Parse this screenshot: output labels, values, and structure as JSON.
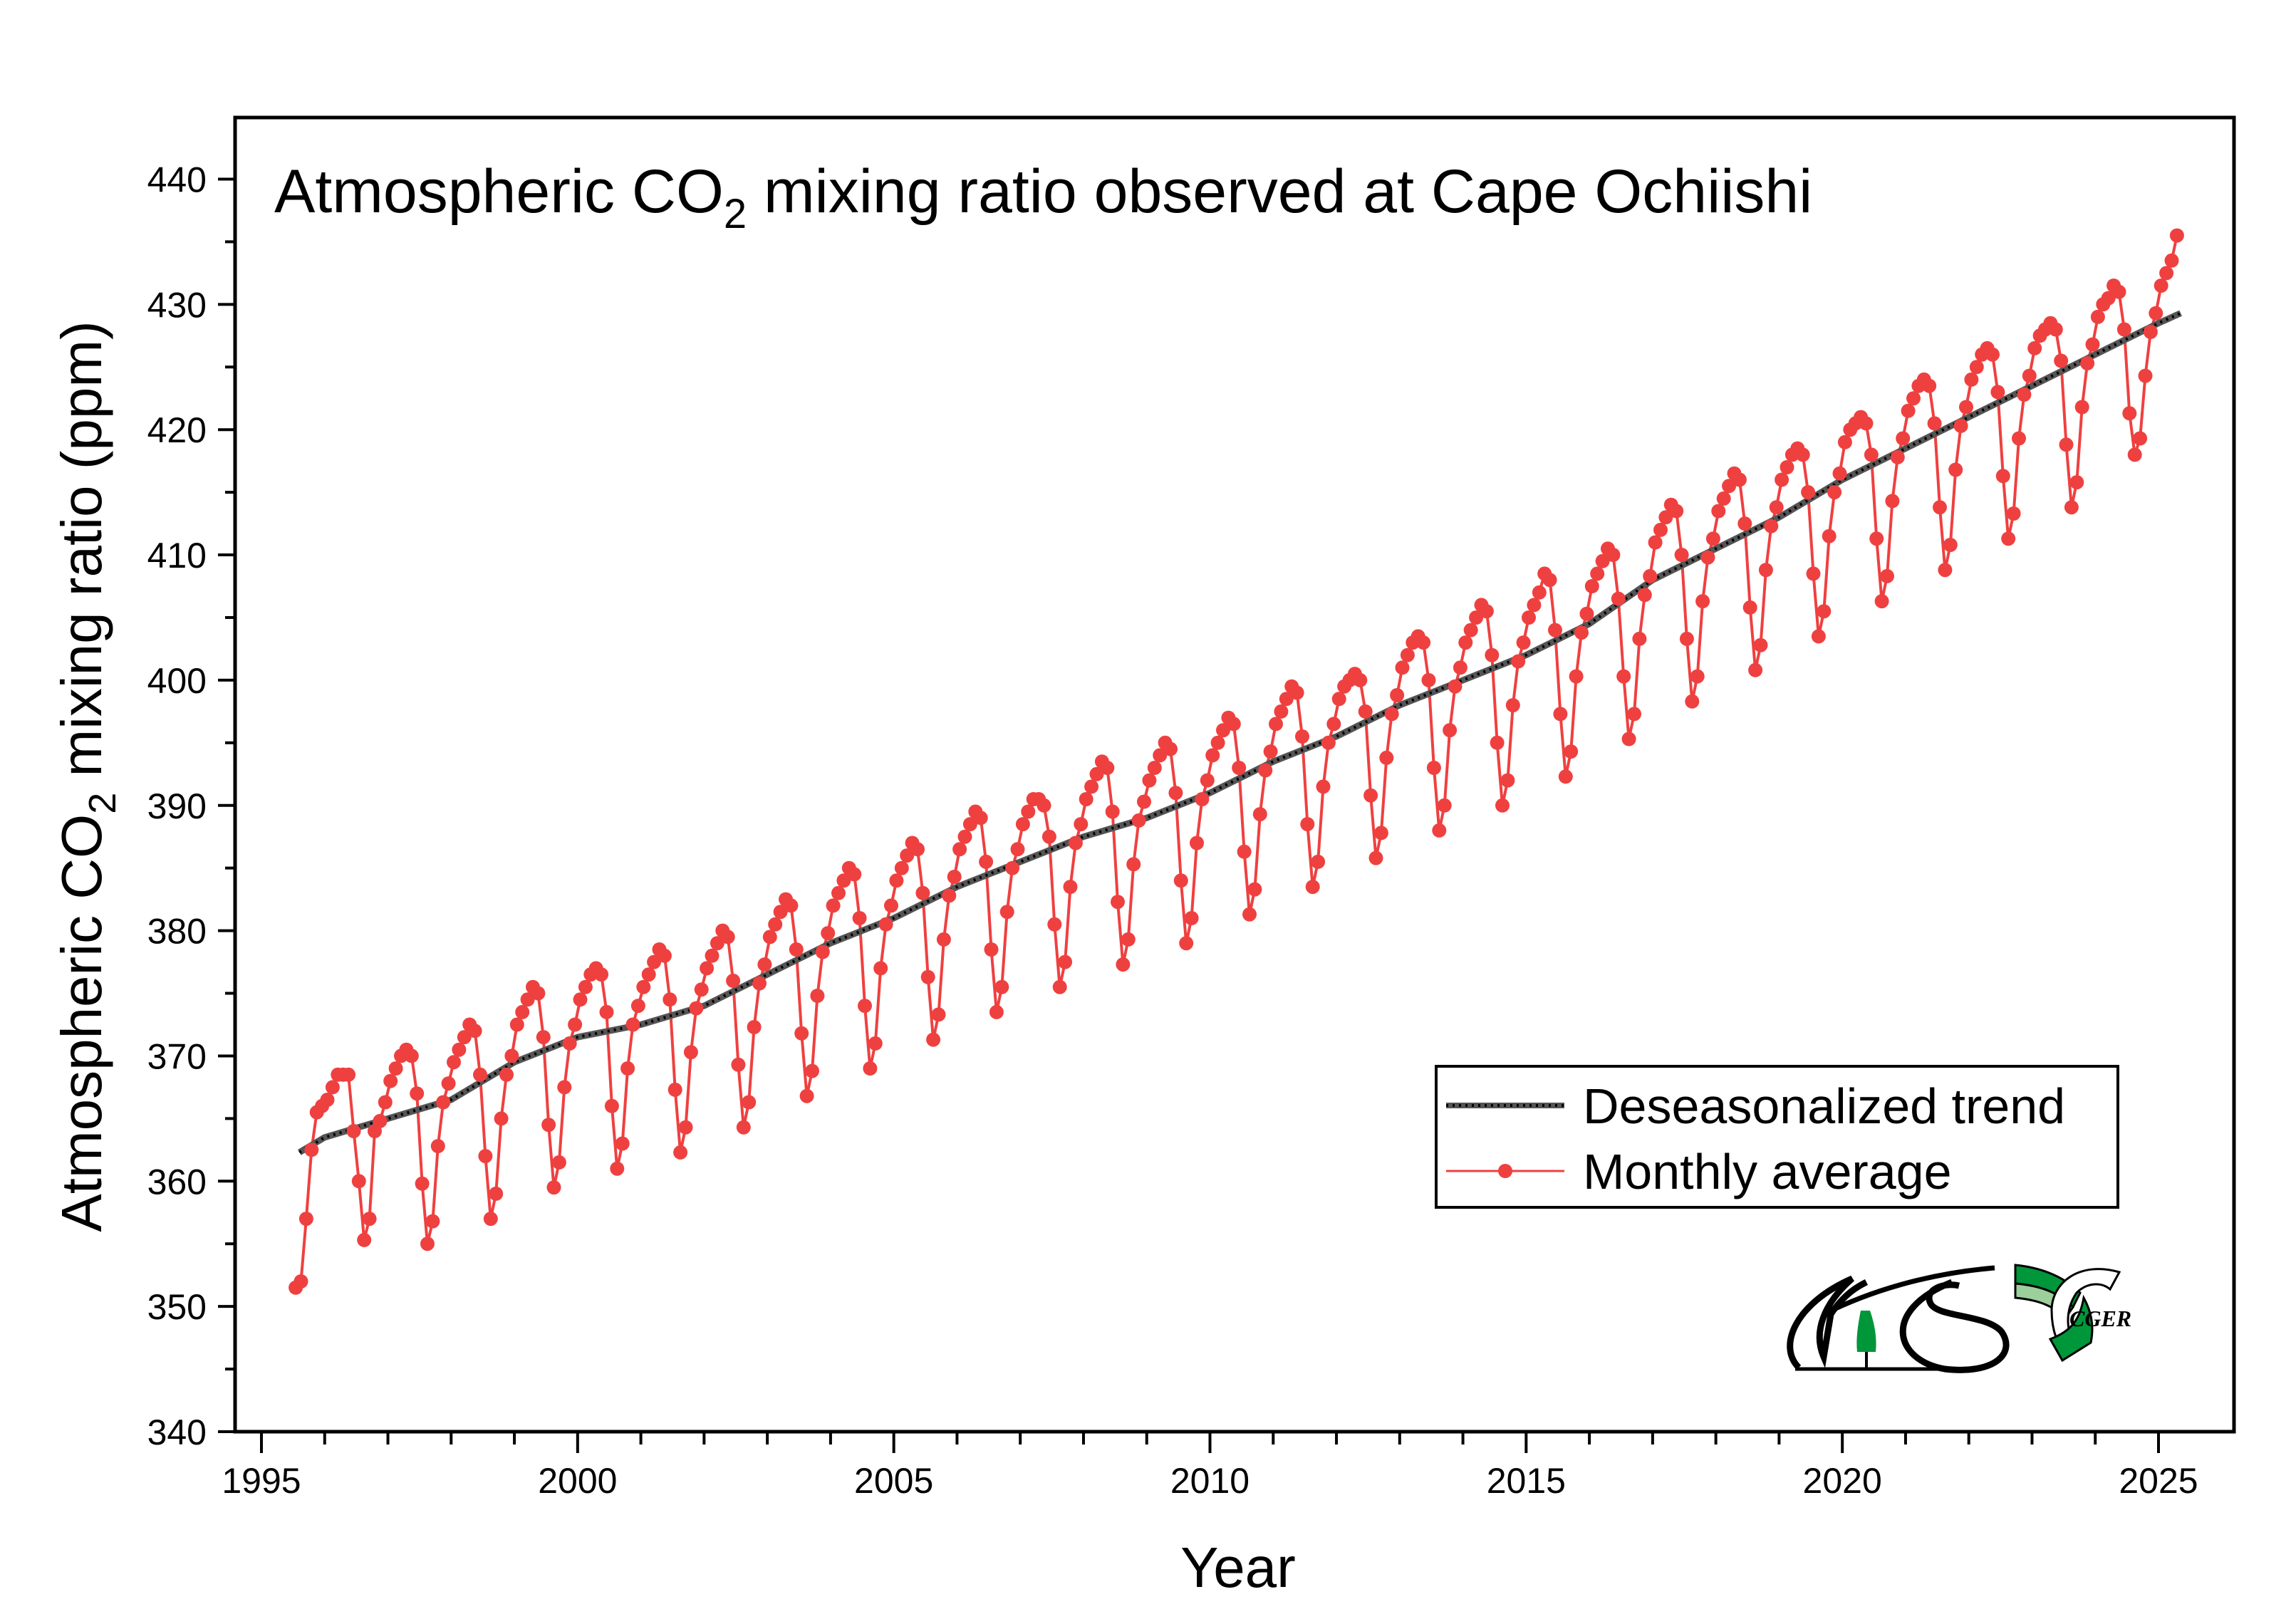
{
  "chart_data": {
    "type": "line",
    "title": {
      "prefix": "Atmospheric CO",
      "sub": "2",
      "suffix": " mixing ratio observed at Cape Ochiishi"
    },
    "xlabel": "Year",
    "ylabel": {
      "prefix": "Atmospheric CO",
      "sub": "2",
      "suffix": " mixing ratio  (ppm)"
    },
    "xlim": [
      1995,
      2026
    ],
    "ylim": [
      340,
      445
    ],
    "x_ticks": [
      1995,
      2000,
      2005,
      2010,
      2015,
      2020,
      2025
    ],
    "y_ticks": [
      340,
      350,
      360,
      370,
      380,
      390,
      400,
      410,
      420,
      430,
      440
    ],
    "grid": false,
    "legend_placement": "lower-right",
    "legend": [
      "Deseasonalized trend",
      "Monthly average"
    ],
    "colors": {
      "trend": "#333333",
      "monthly": "#ef4040",
      "logo_green": "#00963a",
      "logo_light_green": "#9ccf9c"
    },
    "logos": [
      "NIES",
      "CGER"
    ],
    "series": [
      {
        "name": "Deseasonalized trend",
        "x": [
          1995.6,
          1996,
          1997,
          1998,
          1999,
          2000,
          2001,
          2002,
          2003,
          2004,
          2005,
          2006,
          2007,
          2008,
          2009,
          2010,
          2011,
          2012,
          2013,
          2014,
          2015,
          2016,
          2017,
          2018,
          2019,
          2020,
          2021,
          2022,
          2023,
          2024,
          2025,
          2025.35
        ],
        "values": [
          362.3,
          363.5,
          365,
          366.5,
          369.5,
          371.5,
          372.5,
          374,
          376.5,
          379,
          381,
          383.5,
          385.5,
          387.5,
          389,
          391,
          393.5,
          395.5,
          398,
          400,
          402,
          404.5,
          408,
          410.5,
          413,
          416,
          418.5,
          421,
          423.5,
          426,
          428.5,
          429.3
        ]
      },
      {
        "name": "Monthly average",
        "monthly": [
          {
            "year": 1995,
            "values": [
              null,
              null,
              null,
              null,
              null,
              null,
              351.5,
              352,
              357,
              362.5,
              365.5,
              366
            ]
          },
          {
            "year": 1996,
            "values": [
              366.5,
              367.5,
              368.5,
              368.5,
              368.5,
              364,
              360,
              355.3,
              357,
              364,
              364.8,
              366.3
            ]
          },
          {
            "year": 1997,
            "values": [
              368,
              369,
              370,
              370.5,
              370,
              367,
              359.8,
              355,
              356.8,
              362.8,
              366.3,
              367.8
            ]
          },
          {
            "year": 1998,
            "values": [
              369.5,
              370.5,
              371.5,
              372.5,
              372,
              368.5,
              362,
              357,
              359,
              365,
              368.5,
              370
            ]
          },
          {
            "year": 1999,
            "values": [
              372.5,
              373.5,
              374.5,
              375.5,
              375,
              371.5,
              364.5,
              359.5,
              361.5,
              367.5,
              371,
              372.5
            ]
          },
          {
            "year": 2000,
            "values": [
              374.5,
              375.5,
              376.5,
              377,
              376.5,
              373.5,
              366,
              361,
              363,
              369,
              372.5,
              374
            ]
          },
          {
            "year": 2001,
            "values": [
              375.5,
              376.5,
              377.5,
              378.5,
              378,
              374.5,
              367.3,
              362.3,
              364.3,
              370.3,
              373.8,
              375.3
            ]
          },
          {
            "year": 2002,
            "values": [
              377,
              378,
              379,
              380,
              379.5,
              376,
              369.3,
              364.3,
              366.3,
              372.3,
              375.8,
              377.3
            ]
          },
          {
            "year": 2003,
            "values": [
              379.5,
              380.5,
              381.5,
              382.5,
              382,
              378.5,
              371.8,
              366.8,
              368.8,
              374.8,
              378.3,
              379.8
            ]
          },
          {
            "year": 2004,
            "values": [
              382,
              383,
              384,
              385,
              384.5,
              381,
              374,
              369,
              371,
              377,
              380.5,
              382
            ]
          },
          {
            "year": 2005,
            "values": [
              384,
              385,
              386,
              387,
              386.5,
              383,
              376.3,
              371.3,
              373.3,
              379.3,
              382.8,
              384.3
            ]
          },
          {
            "year": 2006,
            "values": [
              386.5,
              387.5,
              388.5,
              389.5,
              389,
              385.5,
              378.5,
              373.5,
              375.5,
              381.5,
              385,
              386.5
            ]
          },
          {
            "year": 2007,
            "values": [
              388.5,
              389.5,
              390.5,
              390.5,
              390,
              387.5,
              380.5,
              375.5,
              377.5,
              383.5,
              387,
              388.5
            ]
          },
          {
            "year": 2008,
            "values": [
              390.5,
              391.5,
              392.5,
              393.5,
              393,
              389.5,
              382.3,
              377.3,
              379.3,
              385.3,
              388.8,
              390.3
            ]
          },
          {
            "year": 2009,
            "values": [
              392,
              393,
              394,
              395,
              394.5,
              391,
              384,
              379,
              381,
              387,
              390.5,
              392
            ]
          },
          {
            "year": 2010,
            "values": [
              394,
              395,
              396,
              397,
              396.5,
              393,
              386.3,
              381.3,
              383.3,
              389.3,
              392.8,
              394.3
            ]
          },
          {
            "year": 2011,
            "values": [
              396.5,
              397.5,
              398.5,
              399.5,
              399,
              395.5,
              388.5,
              383.5,
              385.5,
              391.5,
              395,
              396.5
            ]
          },
          {
            "year": 2012,
            "values": [
              398.5,
              399.5,
              400,
              400.5,
              400,
              397.5,
              390.8,
              385.8,
              387.8,
              393.8,
              397.3,
              398.8
            ]
          },
          {
            "year": 2013,
            "values": [
              401,
              402,
              403,
              403.5,
              403,
              400,
              393,
              388,
              390,
              396,
              399.5,
              401
            ]
          },
          {
            "year": 2014,
            "values": [
              403,
              404,
              405,
              406,
              405.5,
              402,
              395,
              390,
              392,
              398,
              401.5,
              403
            ]
          },
          {
            "year": 2015,
            "values": [
              405,
              406,
              407,
              408.5,
              408,
              404,
              397.3,
              392.3,
              394.3,
              400.3,
              403.8,
              405.3
            ]
          },
          {
            "year": 2016,
            "values": [
              407.5,
              408.5,
              409.5,
              410.5,
              410,
              406.5,
              400.3,
              395.3,
              397.3,
              403.3,
              406.8,
              408.3
            ]
          },
          {
            "year": 2017,
            "values": [
              411,
              412,
              413,
              414,
              413.5,
              410,
              403.3,
              398.3,
              400.3,
              406.3,
              409.8,
              411.3
            ]
          },
          {
            "year": 2018,
            "values": [
              413.5,
              414.5,
              415.5,
              416.5,
              416,
              412.5,
              405.8,
              400.8,
              402.8,
              408.8,
              412.3,
              413.8
            ]
          },
          {
            "year": 2019,
            "values": [
              416,
              417,
              418,
              418.5,
              418,
              415,
              408.5,
              403.5,
              405.5,
              411.5,
              415,
              416.5
            ]
          },
          {
            "year": 2020,
            "values": [
              419,
              420,
              420.5,
              421,
              420.5,
              418,
              411.3,
              406.3,
              408.3,
              414.3,
              417.8,
              419.3
            ]
          },
          {
            "year": 2021,
            "values": [
              421.5,
              422.5,
              423.5,
              424,
              423.5,
              420.5,
              413.8,
              408.8,
              410.8,
              416.8,
              420.3,
              421.8
            ]
          },
          {
            "year": 2022,
            "values": [
              424,
              425,
              426,
              426.5,
              426,
              423,
              416.3,
              411.3,
              413.3,
              419.3,
              422.8,
              424.3
            ]
          },
          {
            "year": 2023,
            "values": [
              426.5,
              427.5,
              428,
              428.5,
              428,
              425.5,
              418.8,
              413.8,
              415.8,
              421.8,
              425.3,
              426.8
            ]
          },
          {
            "year": 2024,
            "values": [
              429,
              430,
              430.5,
              431.5,
              431,
              428,
              421.3,
              418,
              419.3,
              424.3,
              427.8,
              429.3
            ]
          },
          {
            "year": 2025,
            "values": [
              431.5,
              432.5,
              433.5,
              435.5
            ]
          }
        ]
      }
    ]
  }
}
